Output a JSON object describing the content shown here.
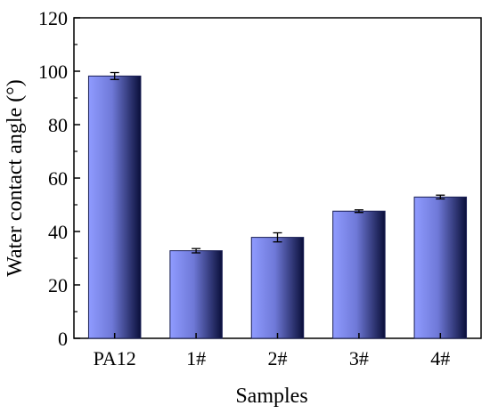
{
  "chart_data": {
    "type": "bar",
    "categories": [
      "PA12",
      "1#",
      "2#",
      "3#",
      "4#"
    ],
    "values": [
      98.2,
      32.8,
      37.8,
      47.6,
      52.9
    ],
    "errors": [
      1.3,
      0.8,
      1.7,
      0.5,
      0.7
    ],
    "xlabel": "Samples",
    "ylabel": "Water contact angle (°)",
    "ylim": [
      0,
      120
    ],
    "yticks": [
      0,
      20,
      40,
      60,
      80,
      100,
      120
    ],
    "grid": false,
    "legend": "none",
    "bar_gradient": [
      "#8f9bff",
      "#0a0f3a"
    ],
    "axis_color": "#000000"
  }
}
